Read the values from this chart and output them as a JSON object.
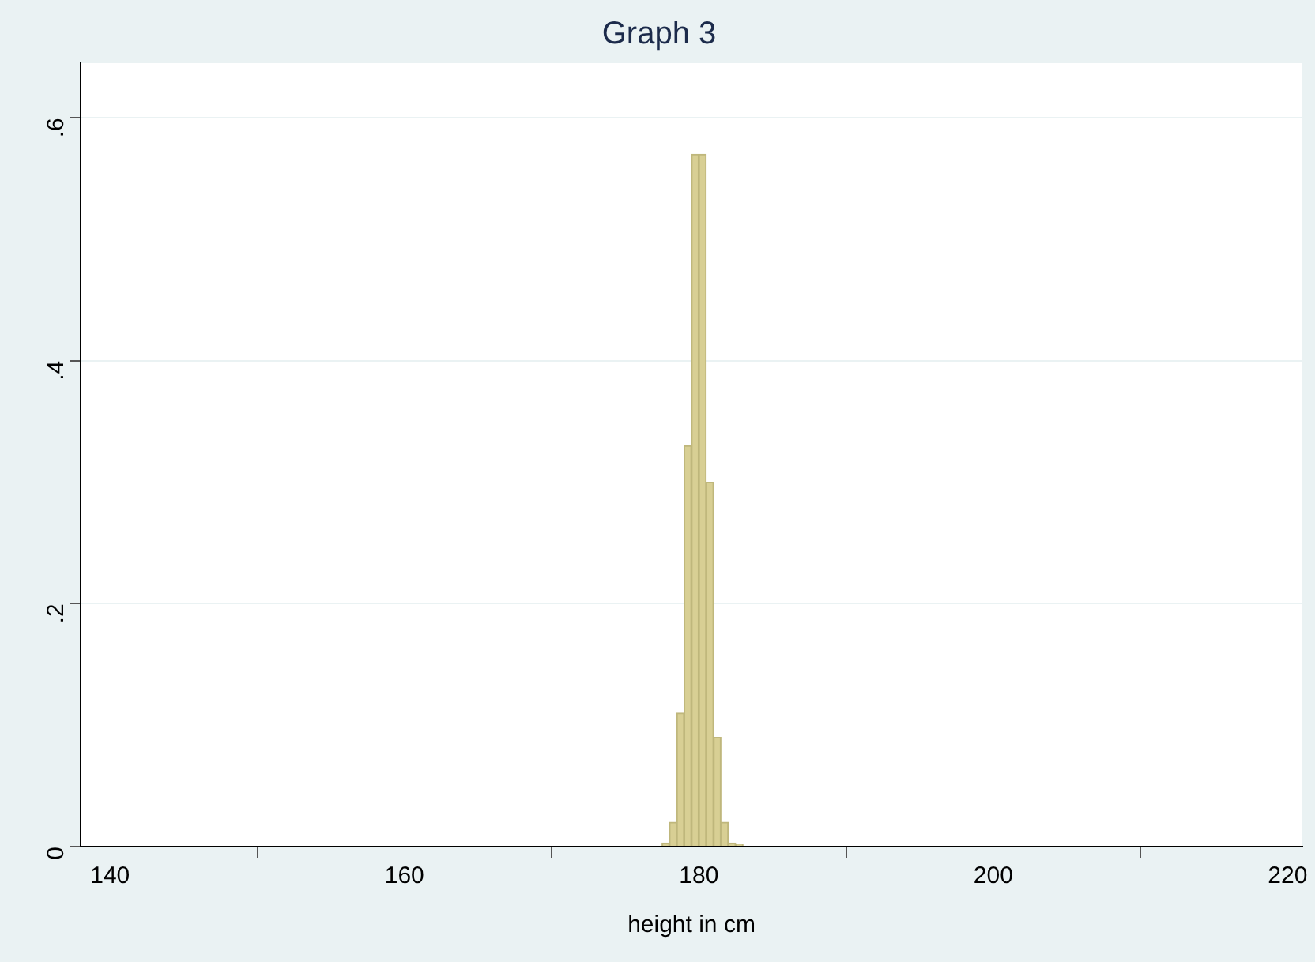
{
  "chart_data": {
    "type": "histogram",
    "title": "Graph 3",
    "xlabel": "height in cm",
    "bins": [
      177.5,
      178,
      178.5,
      179,
      179.5,
      180,
      180.5,
      181,
      181.5,
      182,
      182.5,
      183
    ],
    "values": [
      0.003,
      0.02,
      0.11,
      0.33,
      0.57,
      0.57,
      0.3,
      0.09,
      0.02,
      0.003,
      0.002
    ],
    "color": "#d8cf94",
    "xlim": [
      138,
      221
    ],
    "xticks": [
      140,
      160,
      180,
      200,
      220
    ],
    "ylim": [
      0,
      0.645
    ],
    "yticks": [
      0,
      {
        "value": 0.2,
        "label": ".2"
      },
      {
        "value": 0.4,
        "label": ".4"
      },
      {
        "value": 0.6,
        "label": ".6"
      }
    ],
    "grid": "y",
    "legend": false
  }
}
